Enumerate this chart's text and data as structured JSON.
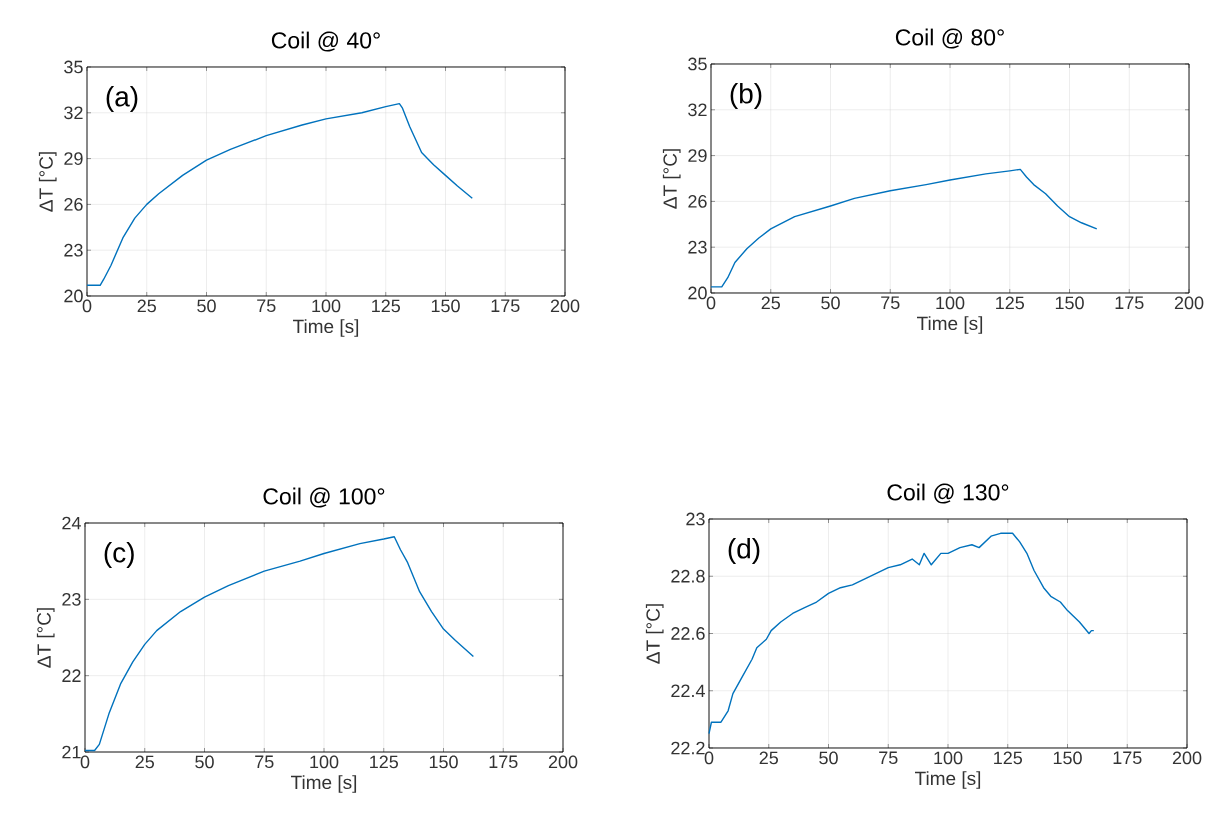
{
  "chart_data": [
    {
      "type": "line",
      "title": "Coil @ 40°",
      "xlabel": "Time [s]",
      "ylabel": "ΔT [°C]",
      "annotations": [
        "(a)"
      ],
      "color": "#0072bd",
      "grid": true,
      "xlim": [
        0,
        200
      ],
      "ylim": [
        20,
        35
      ],
      "xticks": [
        0,
        25,
        50,
        75,
        100,
        125,
        150,
        175,
        200
      ],
      "yticks": [
        20,
        23,
        26,
        29,
        32,
        35
      ],
      "x": [
        0,
        5.5,
        7,
        10,
        15,
        20,
        25,
        30,
        40,
        50,
        60,
        75,
        90,
        100,
        115,
        125,
        130.7,
        132,
        135,
        140,
        145,
        150,
        155,
        161.2
      ],
      "values": [
        20.7,
        20.7,
        21.1,
        22.0,
        23.8,
        25.1,
        26.0,
        26.7,
        27.9,
        28.9,
        29.6,
        30.5,
        31.2,
        31.6,
        32.0,
        32.4,
        32.6,
        32.3,
        31.1,
        29.4,
        28.6,
        27.9,
        27.2,
        26.4
      ]
    },
    {
      "type": "line",
      "title": "Coil @ 80°",
      "xlabel": "Time [s]",
      "ylabel": "ΔT [°C]",
      "annotations": [
        "(b)"
      ],
      "color": "#0072bd",
      "grid": true,
      "xlim": [
        0,
        200
      ],
      "ylim": [
        20,
        35
      ],
      "xticks": [
        0,
        25,
        50,
        75,
        100,
        125,
        150,
        175,
        200
      ],
      "yticks": [
        20,
        23,
        26,
        29,
        32,
        35
      ],
      "x": [
        0,
        4.5,
        7,
        10,
        15,
        20,
        25,
        35,
        50,
        60,
        75,
        90,
        100,
        115,
        125,
        129.4,
        132,
        135,
        140,
        145,
        150,
        155,
        161.4
      ],
      "values": [
        20.4,
        20.4,
        21.0,
        22.0,
        22.9,
        23.6,
        24.2,
        25.0,
        25.7,
        26.2,
        26.7,
        27.1,
        27.4,
        27.8,
        28.0,
        28.1,
        27.6,
        27.1,
        26.5,
        25.7,
        25.0,
        24.6,
        24.2
      ]
    },
    {
      "type": "line",
      "title": "Coil @ 100°",
      "xlabel": "Time [s]",
      "ylabel": "ΔT [°C]",
      "annotations": [
        "(c)"
      ],
      "color": "#0072bd",
      "grid": true,
      "xlim": [
        0,
        200
      ],
      "ylim": [
        21,
        24
      ],
      "xticks": [
        0,
        25,
        50,
        75,
        100,
        125,
        150,
        175,
        200
      ],
      "yticks": [
        21,
        22,
        23,
        24
      ],
      "x": [
        0,
        4,
        6,
        10,
        15,
        20,
        25,
        30,
        40,
        50,
        60,
        75,
        90,
        100,
        115,
        125,
        129.4,
        132,
        135,
        140,
        145,
        150,
        155,
        162.5
      ],
      "values": [
        21.02,
        21.02,
        21.1,
        21.5,
        21.9,
        22.18,
        22.41,
        22.59,
        22.84,
        23.03,
        23.18,
        23.37,
        23.5,
        23.6,
        23.73,
        23.79,
        23.82,
        23.65,
        23.48,
        23.1,
        22.84,
        22.61,
        22.46,
        22.25
      ]
    },
    {
      "type": "line",
      "title": "Coil @ 130°",
      "xlabel": "Time [s]",
      "ylabel": "ΔT [°C]",
      "annotations": [
        "(d)"
      ],
      "color": "#0072bd",
      "grid": true,
      "xlim": [
        0,
        200
      ],
      "ylim": [
        22.2,
        23
      ],
      "xticks": [
        0,
        25,
        50,
        75,
        100,
        125,
        150,
        175,
        200
      ],
      "yticks": [
        22.2,
        22.4,
        22.6,
        22.8,
        23
      ],
      "x": [
        0,
        1,
        5,
        8,
        10,
        14,
        18,
        20,
        24,
        26,
        30,
        35,
        40,
        45,
        50,
        55,
        60,
        65,
        70,
        75,
        80,
        85,
        88,
        90,
        93,
        97,
        100,
        105,
        110,
        113,
        118,
        122,
        127,
        130,
        133,
        136,
        140,
        143,
        147,
        150,
        155,
        159,
        160,
        161
      ],
      "values": [
        22.25,
        22.29,
        22.29,
        22.33,
        22.39,
        22.45,
        22.51,
        22.55,
        22.58,
        22.61,
        22.64,
        22.67,
        22.69,
        22.71,
        22.74,
        22.76,
        22.77,
        22.79,
        22.81,
        22.83,
        22.84,
        22.86,
        22.84,
        22.88,
        22.84,
        22.88,
        22.88,
        22.9,
        22.91,
        22.9,
        22.94,
        22.95,
        22.95,
        22.92,
        22.88,
        22.82,
        22.76,
        22.73,
        22.71,
        22.68,
        22.64,
        22.6,
        22.61,
        22.61
      ]
    }
  ]
}
